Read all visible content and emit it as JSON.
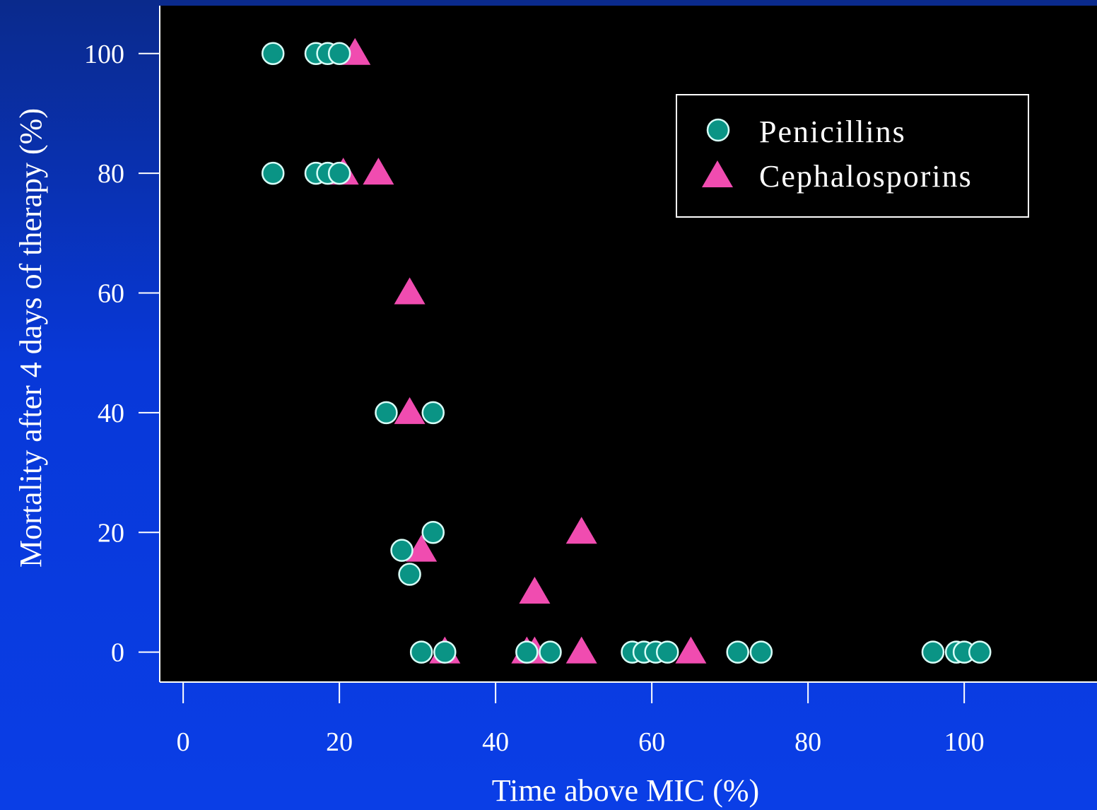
{
  "colors": {
    "background": "#0838d8",
    "plot_area": "#000000",
    "axis": "#ffffff",
    "penicillins": "#0a9485",
    "cephalosporins": "#f04cb0"
  },
  "chart_data": {
    "type": "scatter",
    "xlabel": "Time above MIC (%)",
    "ylabel": "Mortality after 4 days of therapy (%)",
    "xlim": [
      -3,
      117
    ],
    "ylim": [
      -5,
      108
    ],
    "xticks": [
      0,
      20,
      40,
      60,
      80,
      100
    ],
    "yticks": [
      0,
      20,
      40,
      60,
      80,
      100
    ],
    "grid": false,
    "legend_position": "top-right",
    "series": [
      {
        "name": "Penicillins",
        "marker": "circle",
        "color": "#0a9485",
        "points": [
          [
            11.5,
            100
          ],
          [
            17,
            100
          ],
          [
            18.5,
            100
          ],
          [
            20,
            100
          ],
          [
            11.5,
            80
          ],
          [
            17,
            80
          ],
          [
            18.5,
            80
          ],
          [
            20,
            80
          ],
          [
            26,
            40
          ],
          [
            32,
            40
          ],
          [
            32,
            20
          ],
          [
            28,
            17
          ],
          [
            29,
            13
          ],
          [
            30.5,
            0
          ],
          [
            33.5,
            0
          ],
          [
            44,
            0
          ],
          [
            47,
            0
          ],
          [
            57.5,
            0
          ],
          [
            59,
            0
          ],
          [
            60.5,
            0
          ],
          [
            62,
            0
          ],
          [
            71,
            0
          ],
          [
            74,
            0
          ],
          [
            96,
            0
          ],
          [
            99,
            0
          ],
          [
            100,
            0
          ],
          [
            102,
            0
          ]
        ]
      },
      {
        "name": "Cephalosporins",
        "marker": "triangle",
        "color": "#f04cb0",
        "points": [
          [
            22,
            100
          ],
          [
            20.5,
            80
          ],
          [
            25,
            80
          ],
          [
            29,
            60
          ],
          [
            29,
            40
          ],
          [
            30.5,
            17
          ],
          [
            51,
            20
          ],
          [
            45,
            10
          ],
          [
            33.5,
            0
          ],
          [
            44,
            0
          ],
          [
            45,
            0
          ],
          [
            51,
            0
          ],
          [
            65,
            0
          ]
        ]
      }
    ]
  }
}
